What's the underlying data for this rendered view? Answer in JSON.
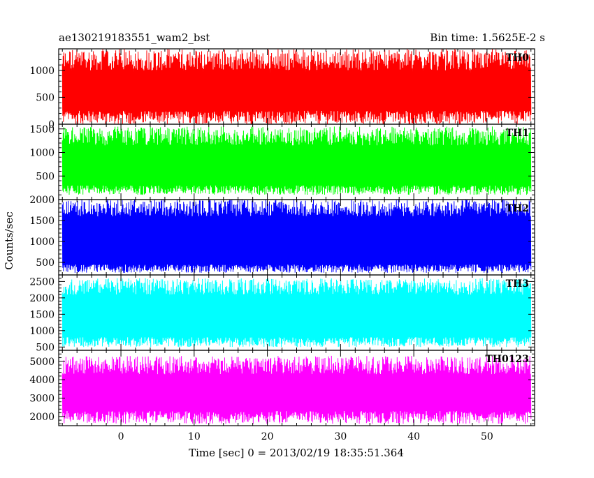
{
  "header": {
    "title": "ae130219183551_wam2_bst",
    "bin_time": "Bin time: 1.5625E-2 s"
  },
  "axes": {
    "xlabel": "Time [sec] 0 = 2013/02/19 18:35:51.364",
    "ylabel": "Counts/sec"
  },
  "chart_data": [
    {
      "type": "line",
      "panel": "TH0",
      "name": "TH0",
      "color": "#ff0000",
      "xlim": [
        -8.5,
        56.5
      ],
      "ylim": [
        0,
        1400
      ],
      "yticks": [
        0,
        500,
        1000
      ],
      "x_range": [
        -8,
        56
      ],
      "mean": 640,
      "envelope_low": [
        0,
        250
      ],
      "envelope_high": [
        1000,
        1400
      ]
    },
    {
      "type": "line",
      "panel": "TH1",
      "name": "TH1",
      "color": "#00ff00",
      "xlim": [
        -8.5,
        56.5
      ],
      "ylim": [
        0,
        1600
      ],
      "yticks": [
        500,
        1000,
        1500
      ],
      "x_range": [
        -8,
        56
      ],
      "mean": 720,
      "envelope_low": [
        100,
        300
      ],
      "envelope_high": [
        1150,
        1550
      ]
    },
    {
      "type": "line",
      "panel": "TH2",
      "name": "TH2",
      "color": "#0000ff",
      "xlim": [
        -8.5,
        56.5
      ],
      "ylim": [
        200,
        2000
      ],
      "yticks": [
        500,
        1000,
        1500,
        2000
      ],
      "x_range": [
        -8,
        56
      ],
      "mean": 1050,
      "envelope_low": [
        250,
        450
      ],
      "envelope_high": [
        1600,
        2000
      ]
    },
    {
      "type": "line",
      "panel": "TH3",
      "name": "TH3",
      "color": "#00ffff",
      "xlim": [
        -8.5,
        56.5
      ],
      "ylim": [
        400,
        2700
      ],
      "yticks": [
        500,
        1000,
        1500,
        2000,
        2500
      ],
      "x_range": [
        -8,
        56
      ],
      "mean": 1450,
      "envelope_low": [
        500,
        800
      ],
      "envelope_high": [
        2100,
        2600
      ]
    },
    {
      "type": "line",
      "panel": "TH0123",
      "name": "TH0123",
      "color": "#ff00ff",
      "xlim": [
        -8.5,
        56.5
      ],
      "ylim": [
        1500,
        5600
      ],
      "yticks": [
        2000,
        3000,
        4000,
        5000
      ],
      "x_range": [
        -8,
        56
      ],
      "mean": 3300,
      "envelope_low": [
        1600,
        2300
      ],
      "envelope_high": [
        4300,
        5300
      ]
    }
  ],
  "x_axis": {
    "ticks": [
      0,
      10,
      20,
      30,
      40,
      50
    ],
    "xlim": [
      -8.5,
      56.5
    ]
  }
}
